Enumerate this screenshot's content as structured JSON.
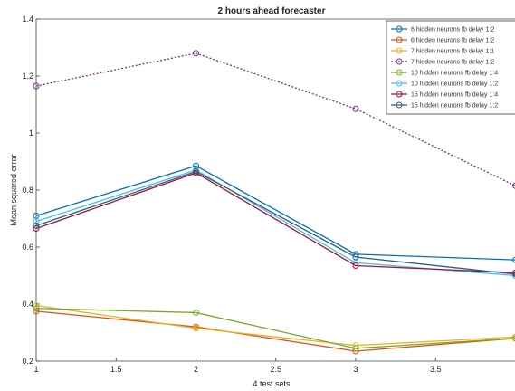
{
  "chart_data": {
    "type": "line",
    "title": "2 hours ahead forecaster",
    "xlabel": "4 test sets",
    "ylabel": "Mean squared error",
    "x": [
      1,
      2,
      3,
      4
    ],
    "xlim": [
      1,
      4
    ],
    "ylim": [
      0.2,
      1.4
    ],
    "xticks": [
      "1",
      "1.5",
      "2",
      "2.5",
      "3",
      "3.5"
    ],
    "yticks": [
      "0.2",
      "0.4",
      "0.6",
      "0.8",
      "1",
      "1.2",
      "1.4"
    ],
    "grid": false,
    "legend_position": "top-right",
    "series": [
      {
        "name": "6 hidden neurons fb delay 1:2",
        "color": "#0072bd",
        "dash": "solid",
        "marker": "circle",
        "values": [
          0.71,
          0.885,
          0.575,
          0.555
        ]
      },
      {
        "name": "6 hidden neurons fb delay 1:2",
        "color": "#d95319",
        "dash": "solid",
        "marker": "circle",
        "values": [
          0.375,
          0.32,
          0.235,
          0.28
        ]
      },
      {
        "name": "7 hidden neurons fb delay 1:1",
        "color": "#edb120",
        "dash": "solid",
        "marker": "circle",
        "values": [
          0.395,
          0.315,
          0.255,
          0.285
        ]
      },
      {
        "name": "7 hidden neurons fb delay 1:2",
        "color": "#7e2f8e",
        "dash": "dashed",
        "marker": "circle",
        "values": [
          1.165,
          1.28,
          1.085,
          0.815
        ]
      },
      {
        "name": "10 hidden neurons fb delay 1:4",
        "color": "#77ac30",
        "dash": "solid",
        "marker": "circle",
        "values": [
          0.385,
          0.37,
          0.245,
          0.28
        ]
      },
      {
        "name": "10 hidden neurons fb delay 1:2",
        "color": "#4dbeee",
        "dash": "solid",
        "marker": "circle",
        "values": [
          0.69,
          0.87,
          0.545,
          0.5
        ]
      },
      {
        "name": "15 hidden neurons fb delay 1:4",
        "color": "#a2142f",
        "dash": "solid",
        "marker": "circle",
        "values": [
          0.665,
          0.86,
          0.535,
          0.51
        ]
      },
      {
        "name": "15 hidden neurons fb delay 1:2",
        "color": "#2a5d84",
        "dash": "solid",
        "marker": "circle",
        "values": [
          0.675,
          0.865,
          0.565,
          0.505
        ]
      }
    ]
  }
}
